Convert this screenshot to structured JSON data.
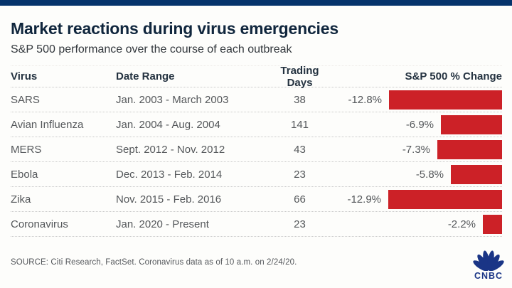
{
  "page": {
    "title": "Market reactions during virus emergencies",
    "subtitle": "S&P 500 performance over the course of each outbreak",
    "source": "SOURCE: Citi Research, FactSet. Coronavirus data as of 10 a.m. on 2/24/20.",
    "logo_text": "CNBC"
  },
  "colors": {
    "top_bar_navy": "#05336b",
    "bar_red": "#cc2127",
    "logo_navy": "#1a3586"
  },
  "table": {
    "headers": [
      "Virus",
      "Date Range",
      "Trading Days",
      "S&P 500 % Change"
    ],
    "rows": [
      {
        "virus": "SARS",
        "date_range": "Jan. 2003 - March 2003",
        "trading_days": "38",
        "pct_change": -12.8,
        "pct_change_label": "-12.8%"
      },
      {
        "virus": "Avian Influenza",
        "date_range": "Jan. 2004 - Aug. 2004",
        "trading_days": "141",
        "pct_change": -6.9,
        "pct_change_label": "-6.9%"
      },
      {
        "virus": "MERS",
        "date_range": "Sept. 2012 - Nov. 2012",
        "trading_days": "43",
        "pct_change": -7.3,
        "pct_change_label": "-7.3%"
      },
      {
        "virus": "Ebola",
        "date_range": "Dec. 2013 - Feb. 2014",
        "trading_days": "23",
        "pct_change": -5.8,
        "pct_change_label": "-5.8%"
      },
      {
        "virus": "Zika",
        "date_range": "Nov. 2015 - Feb. 2016",
        "trading_days": "66",
        "pct_change": -12.9,
        "pct_change_label": "-12.9%"
      },
      {
        "virus": "Coronavirus",
        "date_range": "Jan. 2020 - Present",
        "trading_days": "23",
        "pct_change": -2.2,
        "pct_change_label": "-2.2%"
      }
    ]
  },
  "chart_data": {
    "type": "bar",
    "orientation": "horizontal",
    "title": "Market reactions during virus emergencies",
    "subtitle": "S&P 500 performance over the course of each outbreak",
    "categories": [
      "SARS",
      "Avian Influenza",
      "MERS",
      "Ebola",
      "Zika",
      "Coronavirus"
    ],
    "values": [
      -12.8,
      -6.9,
      -7.3,
      -5.8,
      -12.9,
      -2.2
    ],
    "value_labels": [
      "-12.8%",
      "-6.9%",
      "-7.3%",
      "-5.8%",
      "-12.9%",
      "-2.2%"
    ],
    "series_label": "S&P 500 % Change",
    "date_ranges": [
      "Jan. 2003 - March 2003",
      "Jan. 2004 - Aug. 2004",
      "Sept. 2012 - Nov. 2012",
      "Dec. 2013 - Feb. 2014",
      "Nov. 2015 - Feb. 2016",
      "Jan. 2020 - Present"
    ],
    "trading_days": [
      38,
      141,
      43,
      23,
      66,
      23
    ],
    "bar_color": "#cc2127",
    "bars_anchored": "right",
    "grid": false,
    "legend": false,
    "source": "SOURCE: Citi Research, FactSet. Coronavirus data as of 10 a.m. on 2/24/20."
  }
}
